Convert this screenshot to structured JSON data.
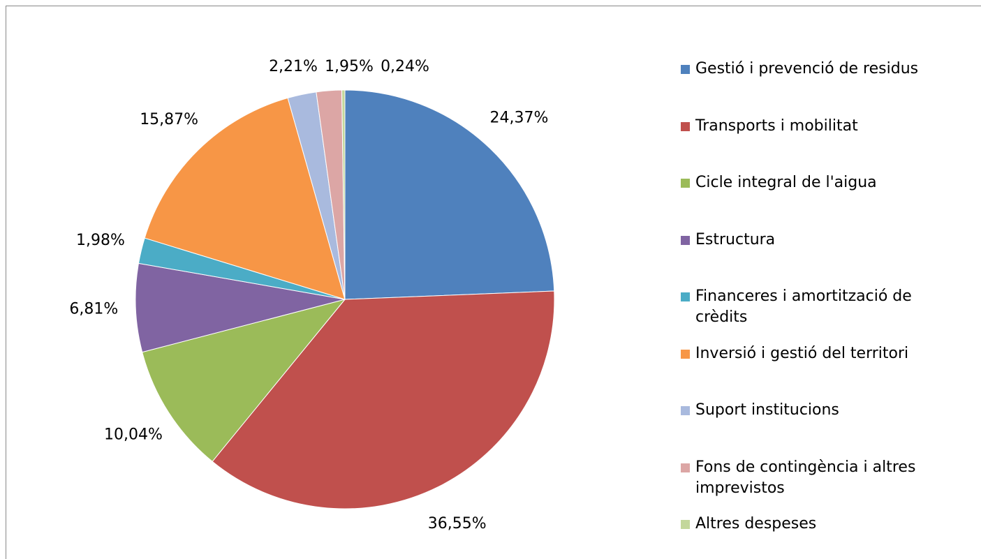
{
  "chart_data": {
    "type": "pie",
    "categories": [
      "Gestió i prevenció de residus",
      "Transports i mobilitat",
      "Cicle integral de l'aigua",
      "Estructura",
      "Financeres i amortització de crèdits",
      "Inversió i gestió del territori",
      "Suport institucions",
      "Fons de contingència i altres imprevistos",
      "Altres despeses"
    ],
    "values": [
      24.37,
      36.55,
      10.04,
      6.81,
      1.98,
      15.87,
      2.21,
      1.95,
      0.24
    ],
    "value_labels": [
      "24,37%",
      "36,55%",
      "10,04%",
      "6,81%",
      "1,98%",
      "15,87%",
      "2,21%",
      "1,95%",
      "0,24%"
    ],
    "colors": [
      "#4f81bd",
      "#c0504d",
      "#9bbb59",
      "#8064a2",
      "#4bacc6",
      "#f79646",
      "#a9bade",
      "#dca6a5",
      "#c3d79b"
    ],
    "legend": "right"
  }
}
